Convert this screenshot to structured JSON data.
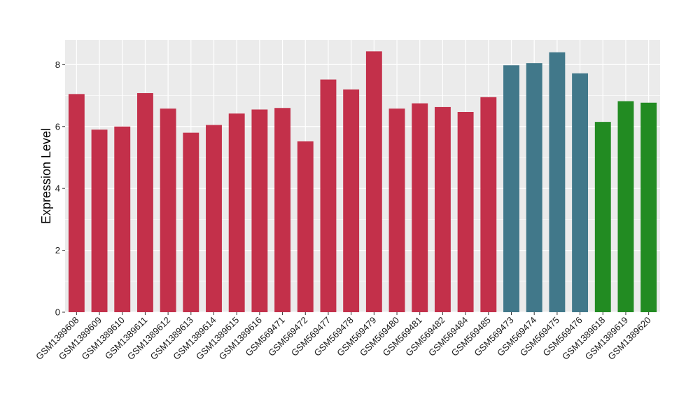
{
  "chart_data": {
    "type": "bar",
    "title": "",
    "xlabel": "",
    "ylabel": "Expression Level",
    "ylim": [
      0,
      8.8
    ],
    "yticks": [
      0,
      2,
      4,
      6,
      8
    ],
    "grid": true,
    "legend": "none",
    "panel_background": "#ebebeb",
    "grid_color": "#ffffff",
    "categories": [
      "GSM1389608",
      "GSM1389609",
      "GSM1389610",
      "GSM1389611",
      "GSM1389612",
      "GSM1389613",
      "GSM1389614",
      "GSM1389615",
      "GSM1389616",
      "GSM569471",
      "GSM569472",
      "GSM569477",
      "GSM569478",
      "GSM569479",
      "GSM569480",
      "GSM569481",
      "GSM569482",
      "GSM569484",
      "GSM569485",
      "GSM569473",
      "GSM569474",
      "GSM569475",
      "GSM569476",
      "GSM1389618",
      "GSM1389619",
      "GSM1389620"
    ],
    "values": [
      7.05,
      5.9,
      6.0,
      7.08,
      6.58,
      5.8,
      6.05,
      6.42,
      6.55,
      6.6,
      5.52,
      7.52,
      7.2,
      8.43,
      6.58,
      6.75,
      6.63,
      6.47,
      6.95,
      7.98,
      8.05,
      8.4,
      7.72,
      6.15,
      6.82,
      6.77
    ],
    "bar_colors": [
      "#c3304a",
      "#c3304a",
      "#c3304a",
      "#c3304a",
      "#c3304a",
      "#c3304a",
      "#c3304a",
      "#c3304a",
      "#c3304a",
      "#c3304a",
      "#c3304a",
      "#c3304a",
      "#c3304a",
      "#c3304a",
      "#c3304a",
      "#c3304a",
      "#c3304a",
      "#c3304a",
      "#c3304a",
      "#41788a",
      "#41788a",
      "#41788a",
      "#41788a",
      "#228b22",
      "#228b22",
      "#228b22"
    ]
  }
}
